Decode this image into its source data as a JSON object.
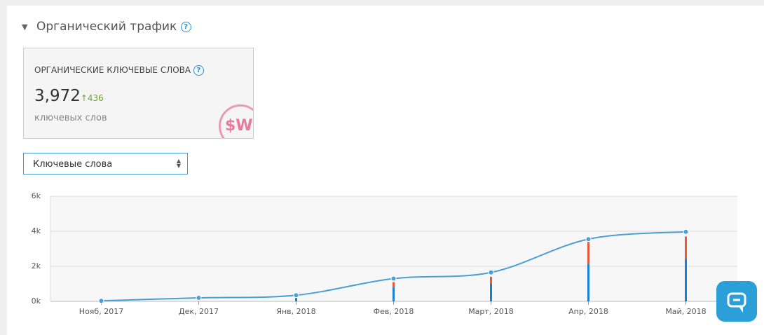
{
  "header": {
    "title": "Органический трафик",
    "help": "?"
  },
  "card": {
    "label": "ОРГАНИЧЕСКИЕ КЛЮЧЕВЫЕ СЛОВА",
    "value": "3,972",
    "delta": "↑436",
    "unit": "ключевых слов",
    "logo": "$W"
  },
  "select": {
    "label": "Ключевые слова"
  },
  "chart_data": {
    "type": "combo",
    "categories": [
      "Нояб, 2017",
      "Дек, 2017",
      "Янв, 2018",
      "Фев, 2018",
      "Март, 2018",
      "Апр, 2018",
      "Май, 2018"
    ],
    "series": [
      {
        "type": "line",
        "color": "#4a9fd5",
        "values": [
          30,
          200,
          350,
          1300,
          1650,
          3550,
          3972
        ]
      },
      {
        "type": "bar",
        "color": "#1a7fd4",
        "values": [
          null,
          null,
          200,
          800,
          1000,
          2150,
          2400
        ]
      },
      {
        "type": "bar",
        "color": "#e8583a",
        "values": [
          null,
          null,
          null,
          300,
          400,
          1250,
          1300
        ]
      }
    ],
    "ylim": [
      0,
      6000
    ],
    "yticks": [
      {
        "value": 0,
        "label": "0k"
      },
      {
        "value": 2000,
        "label": "2k"
      },
      {
        "value": 4000,
        "label": "4k"
      },
      {
        "value": 6000,
        "label": "6k"
      }
    ],
    "grid": true
  }
}
